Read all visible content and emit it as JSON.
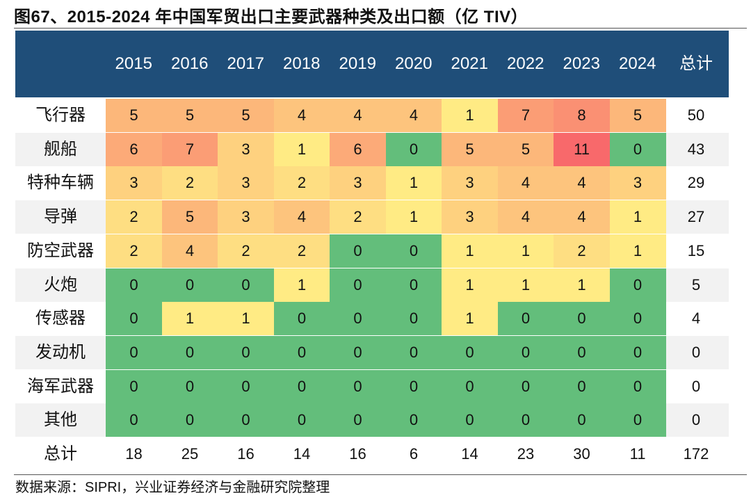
{
  "title": "图67、2015-2024 年中国军贸出口主要武器种类及出口额（亿 TIV）",
  "source": "数据来源：SIPRI，兴业证券经济与金融研究院整理",
  "colors": {
    "header_bg": "#1f4e79",
    "scale_low": "#63be7b",
    "scale_mid": "#ffeb84",
    "scale_high": "#f8696b",
    "stripe": "#f2f2f2"
  },
  "chart_data": {
    "type": "heatmap",
    "title": "2015-2024 年中国军贸出口主要武器种类及出口额（亿 TIV）",
    "columns": [
      "2015",
      "2016",
      "2017",
      "2018",
      "2019",
      "2020",
      "2021",
      "2022",
      "2023",
      "2024"
    ],
    "total_label": "总计",
    "rows": [
      {
        "label": "飞行器",
        "values": [
          5,
          5,
          5,
          4,
          4,
          4,
          1,
          7,
          8,
          5
        ],
        "total": 50
      },
      {
        "label": "舰船",
        "values": [
          6,
          7,
          3,
          1,
          6,
          0,
          5,
          5,
          11,
          0
        ],
        "total": 43
      },
      {
        "label": "特种车辆",
        "values": [
          3,
          2,
          3,
          2,
          3,
          1,
          3,
          4,
          4,
          3
        ],
        "total": 29
      },
      {
        "label": "导弹",
        "values": [
          2,
          5,
          3,
          4,
          2,
          1,
          3,
          4,
          4,
          1
        ],
        "total": 27
      },
      {
        "label": "防空武器",
        "values": [
          2,
          4,
          2,
          2,
          0,
          0,
          1,
          1,
          2,
          1
        ],
        "total": 15
      },
      {
        "label": "火炮",
        "values": [
          0,
          0,
          0,
          1,
          0,
          0,
          1,
          1,
          1,
          0
        ],
        "total": 5
      },
      {
        "label": "传感器",
        "values": [
          0,
          1,
          1,
          0,
          0,
          0,
          1,
          0,
          0,
          0
        ],
        "total": 4
      },
      {
        "label": "发动机",
        "values": [
          0,
          0,
          0,
          0,
          0,
          0,
          0,
          0,
          0,
          0
        ],
        "total": 0
      },
      {
        "label": "海军武器",
        "values": [
          0,
          0,
          0,
          0,
          0,
          0,
          0,
          0,
          0,
          0
        ],
        "total": 0
      },
      {
        "label": "其他",
        "values": [
          0,
          0,
          0,
          0,
          0,
          0,
          0,
          0,
          0,
          0
        ],
        "total": 0
      }
    ],
    "column_totals": {
      "label": "总计",
      "values": [
        18,
        25,
        16,
        14,
        16,
        6,
        14,
        23,
        30,
        11
      ],
      "total": 172
    }
  }
}
